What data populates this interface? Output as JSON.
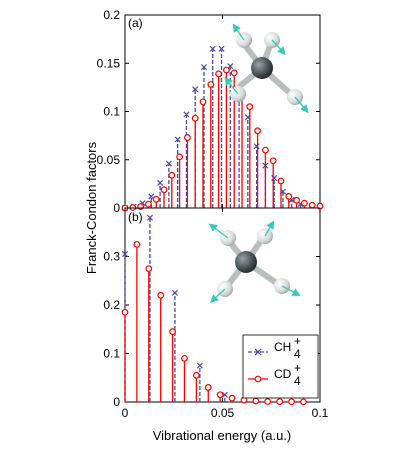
{
  "chart_data": [
    {
      "type": "bar",
      "panel": "(a)",
      "xlim": [
        0,
        0.1
      ],
      "ylim": [
        0,
        0.2
      ],
      "yticks": [
        "0",
        "0.05",
        "0.1",
        "0.15",
        "0.2"
      ],
      "ylabel": "Franck-Condon factors",
      "grid": false,
      "series": [
        {
          "name": "CH4+",
          "color": "#4a4aa8",
          "marker": "x",
          "line": "dashed",
          "x": [
            0.0,
            0.0045,
            0.009,
            0.0135,
            0.018,
            0.0225,
            0.027,
            0.0315,
            0.036,
            0.0405,
            0.045,
            0.0495,
            0.054,
            0.0585,
            0.063,
            0.0675,
            0.072,
            0.0765,
            0.081,
            0.0855,
            0.09
          ],
          "values": [
            0.0,
            0.0015,
            0.005,
            0.012,
            0.026,
            0.046,
            0.071,
            0.097,
            0.123,
            0.146,
            0.165,
            0.165,
            0.147,
            0.121,
            0.094,
            0.064,
            0.044,
            0.031,
            0.017,
            0.0085,
            0.004
          ]
        },
        {
          "name": "CD4+",
          "color": "#ff0000",
          "marker": "o",
          "line": "solid",
          "x": [
            0.0,
            0.004,
            0.008,
            0.012,
            0.016,
            0.02,
            0.024,
            0.028,
            0.032,
            0.036,
            0.04,
            0.044,
            0.048,
            0.052,
            0.056,
            0.06,
            0.064,
            0.068,
            0.072,
            0.076,
            0.08,
            0.084,
            0.088,
            0.092,
            0.096,
            0.1
          ],
          "values": [
            0.0,
            0.0005,
            0.0015,
            0.004,
            0.009,
            0.019,
            0.034,
            0.053,
            0.073,
            0.093,
            0.11,
            0.128,
            0.139,
            0.143,
            0.14,
            0.12,
            0.105,
            0.08,
            0.06,
            0.049,
            0.028,
            0.012,
            0.008,
            0.005,
            0.003,
            0.002
          ]
        }
      ]
    },
    {
      "type": "bar",
      "panel": "(b)",
      "xlim": [
        0,
        0.1
      ],
      "ylim": [
        0,
        0.4
      ],
      "xticks": [
        "0",
        "0.05",
        "0.1"
      ],
      "yticks": [
        "0",
        "0.1",
        "0.2",
        "0.3"
      ],
      "xlabel": "Vibrational energy (a.u.)",
      "grid": false,
      "legend_position": "bottom-right",
      "series": [
        {
          "name": "CH4+",
          "color": "#4a4aa8",
          "marker": "x",
          "line": "dashed",
          "x": [
            0.0,
            0.0128,
            0.0256,
            0.0384,
            0.0512
          ],
          "values": [
            0.305,
            0.38,
            0.225,
            0.075,
            0.015
          ]
        },
        {
          "name": "CD4+",
          "color": "#ff0000",
          "marker": "o",
          "line": "solid",
          "x": [
            0.0,
            0.0061,
            0.0122,
            0.0183,
            0.0244,
            0.0305,
            0.0366,
            0.0427,
            0.0488,
            0.0549,
            0.061,
            0.0671,
            0.0732,
            0.0793,
            0.0854,
            0.0915
          ],
          "values": [
            0.185,
            0.325,
            0.275,
            0.22,
            0.145,
            0.09,
            0.055,
            0.03,
            0.015,
            0.008,
            0.004,
            0.002,
            0.001,
            0.0008,
            0.0005,
            0.0003
          ]
        }
      ]
    }
  ],
  "legend": {
    "entries": [
      {
        "base": "CH",
        "sub": "4",
        "sup": "+"
      },
      {
        "base": "CD",
        "sub": "4",
        "sup": "+"
      }
    ]
  }
}
